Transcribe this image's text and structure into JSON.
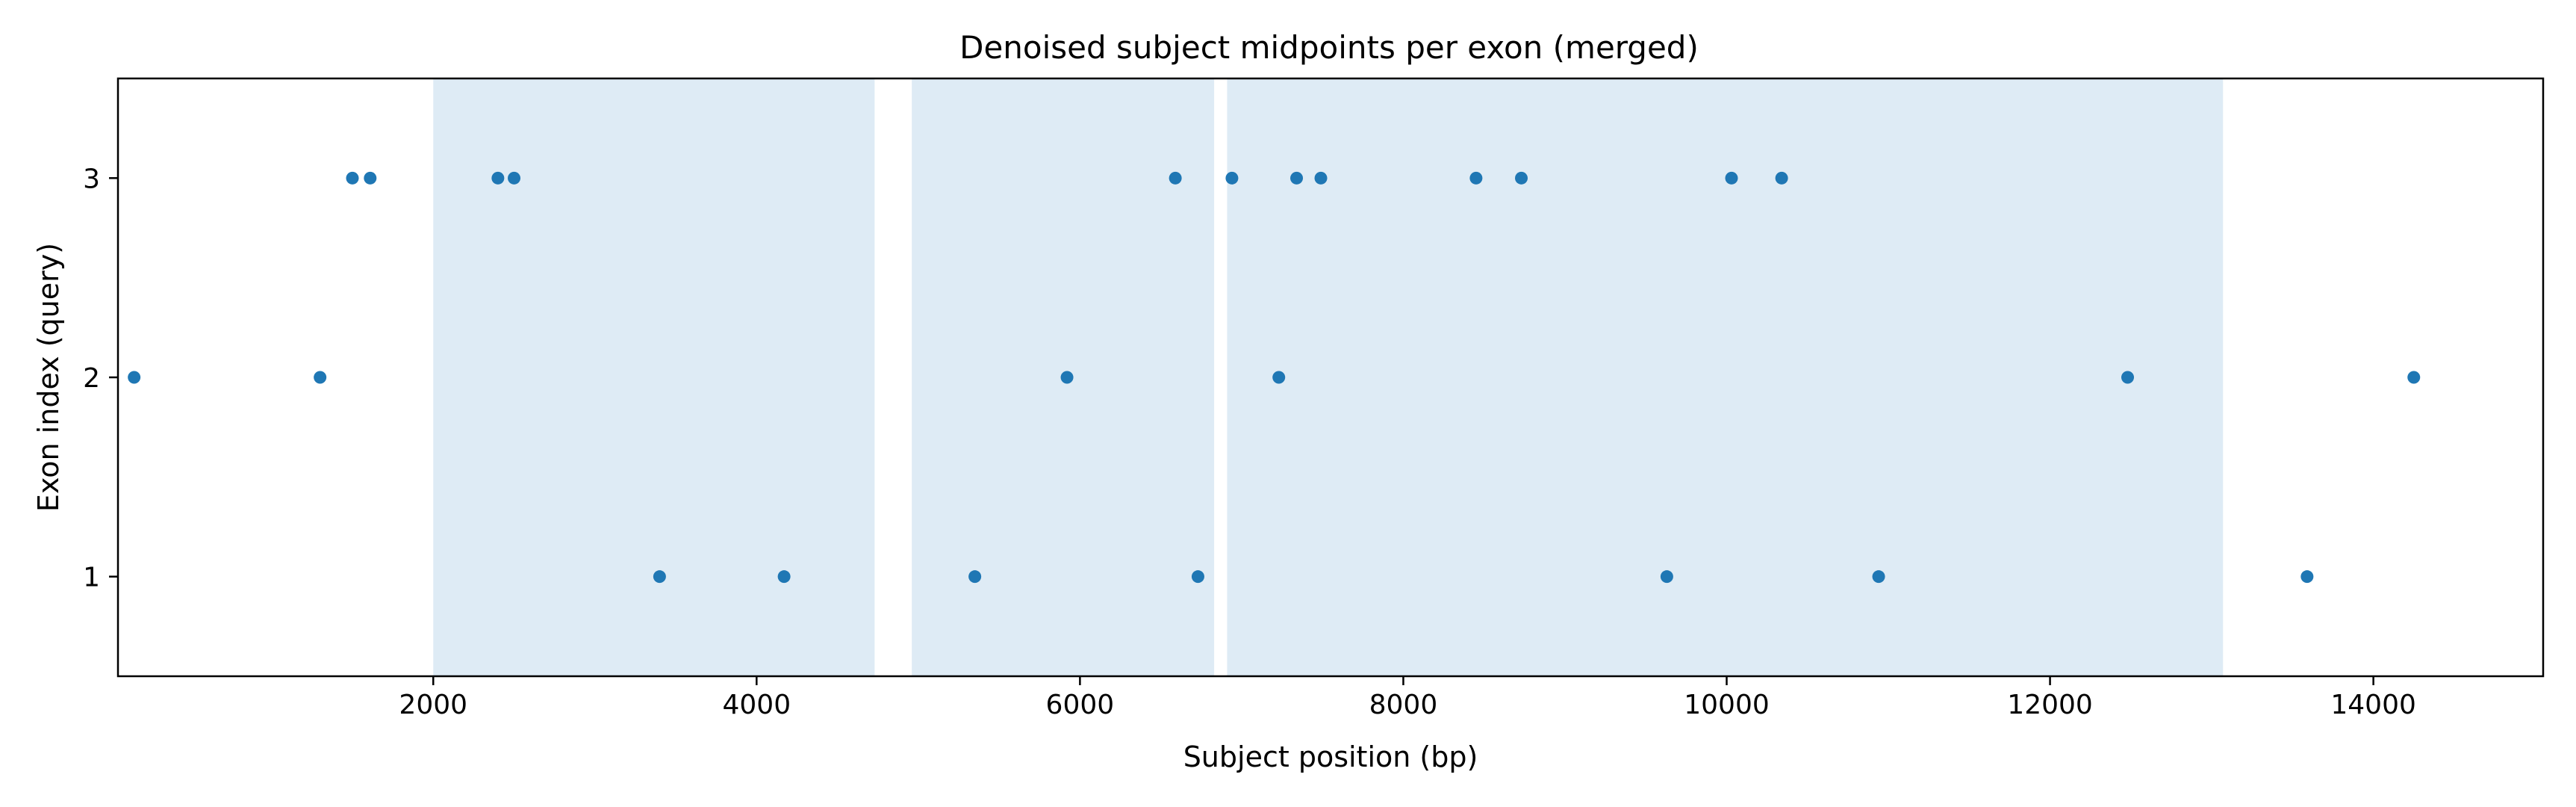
{
  "chart_data": {
    "type": "scatter",
    "title": "Denoised subject midpoints per exon (merged)",
    "xlabel": "Subject position (bp)",
    "ylabel": "Exon index (query)",
    "xlim": [
      50,
      15050
    ],
    "ylim": [
      0.5,
      3.5
    ],
    "xticks": [
      2000,
      4000,
      6000,
      8000,
      10000,
      12000,
      14000
    ],
    "xtick_labels": [
      "2000",
      "4000",
      "6000",
      "8000",
      "10000",
      "12000",
      "14000"
    ],
    "yticks": [
      1,
      2,
      3
    ],
    "ytick_labels": [
      "1",
      "2",
      "3"
    ],
    "grid": false,
    "legend": "none",
    "point_color": "#1f77b4",
    "shaded_color": "#deebf5",
    "shaded_regions": [
      {
        "start": 2000,
        "end": 4730
      },
      {
        "start": 4960,
        "end": 6830
      },
      {
        "start": 6910,
        "end": 13070
      }
    ],
    "points": [
      {
        "x": 150,
        "y": 2
      },
      {
        "x": 1300,
        "y": 2
      },
      {
        "x": 1500,
        "y": 3
      },
      {
        "x": 1610,
        "y": 3
      },
      {
        "x": 2400,
        "y": 3
      },
      {
        "x": 2500,
        "y": 3
      },
      {
        "x": 3400,
        "y": 1
      },
      {
        "x": 4170,
        "y": 1
      },
      {
        "x": 5350,
        "y": 1
      },
      {
        "x": 5920,
        "y": 2
      },
      {
        "x": 6590,
        "y": 3
      },
      {
        "x": 6730,
        "y": 1
      },
      {
        "x": 6940,
        "y": 3
      },
      {
        "x": 7230,
        "y": 2
      },
      {
        "x": 7340,
        "y": 3
      },
      {
        "x": 7490,
        "y": 3
      },
      {
        "x": 8450,
        "y": 3
      },
      {
        "x": 8730,
        "y": 3
      },
      {
        "x": 9630,
        "y": 1
      },
      {
        "x": 10030,
        "y": 3
      },
      {
        "x": 10340,
        "y": 3
      },
      {
        "x": 10940,
        "y": 1
      },
      {
        "x": 12480,
        "y": 2
      },
      {
        "x": 13590,
        "y": 1
      },
      {
        "x": 14250,
        "y": 2
      }
    ]
  }
}
